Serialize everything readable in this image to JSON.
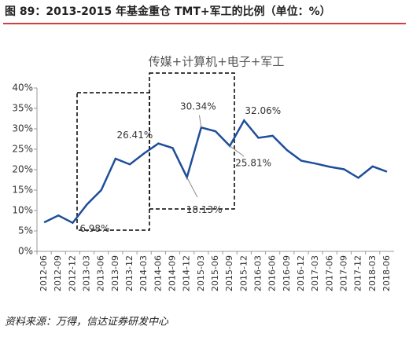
{
  "figure_title": "图 89：2013-2015 年基金重仓 TMT+军工的比例（单位：%）",
  "source": "资料来源：万得，信达证券研发中心",
  "chart_data": {
    "type": "line",
    "title": "传媒+计算机+电子+军工",
    "categories": [
      "2012-06",
      "2012-09",
      "2012-12",
      "2013-03",
      "2013-06",
      "2013-09",
      "2013-12",
      "2014-03",
      "2014-06",
      "2014-09",
      "2014-12",
      "2015-03",
      "2015-06",
      "2015-09",
      "2015-12",
      "2016-03",
      "2016-06",
      "2016-09",
      "2016-12",
      "2017-03",
      "2017-06",
      "2017-09",
      "2017-12",
      "2018-03",
      "2018-06"
    ],
    "series": [
      {
        "name": "传媒+计算机+电子+军工",
        "color": "#1f4e9a",
        "values": [
          7.1,
          8.8,
          6.98,
          11.5,
          15.0,
          22.7,
          21.3,
          24.0,
          26.41,
          25.3,
          18.13,
          30.34,
          29.4,
          25.81,
          32.06,
          27.8,
          28.3,
          24.8,
          22.2,
          21.5,
          20.7,
          20.1,
          18.0,
          20.8,
          19.5
        ],
        "value_labels": [
          null,
          null,
          "6.98%",
          null,
          null,
          null,
          null,
          null,
          "26.41%",
          null,
          "18.13%",
          "30.34%",
          null,
          "25.81%",
          "32.06%",
          null,
          null,
          null,
          null,
          null,
          null,
          null,
          null,
          null,
          null
        ]
      }
    ],
    "ylim": [
      0,
      40
    ],
    "yticks": [
      {
        "value": 0,
        "label": "0%"
      },
      {
        "value": 5,
        "label": "5%"
      },
      {
        "value": 10,
        "label": "10%"
      },
      {
        "value": 15,
        "label": "15%"
      },
      {
        "value": 20,
        "label": "20%"
      },
      {
        "value": 25,
        "label": "25%"
      },
      {
        "value": 30,
        "label": "30%"
      },
      {
        "value": 35,
        "label": "35%"
      },
      {
        "value": 40,
        "label": "40%"
      }
    ],
    "grid": false
  }
}
